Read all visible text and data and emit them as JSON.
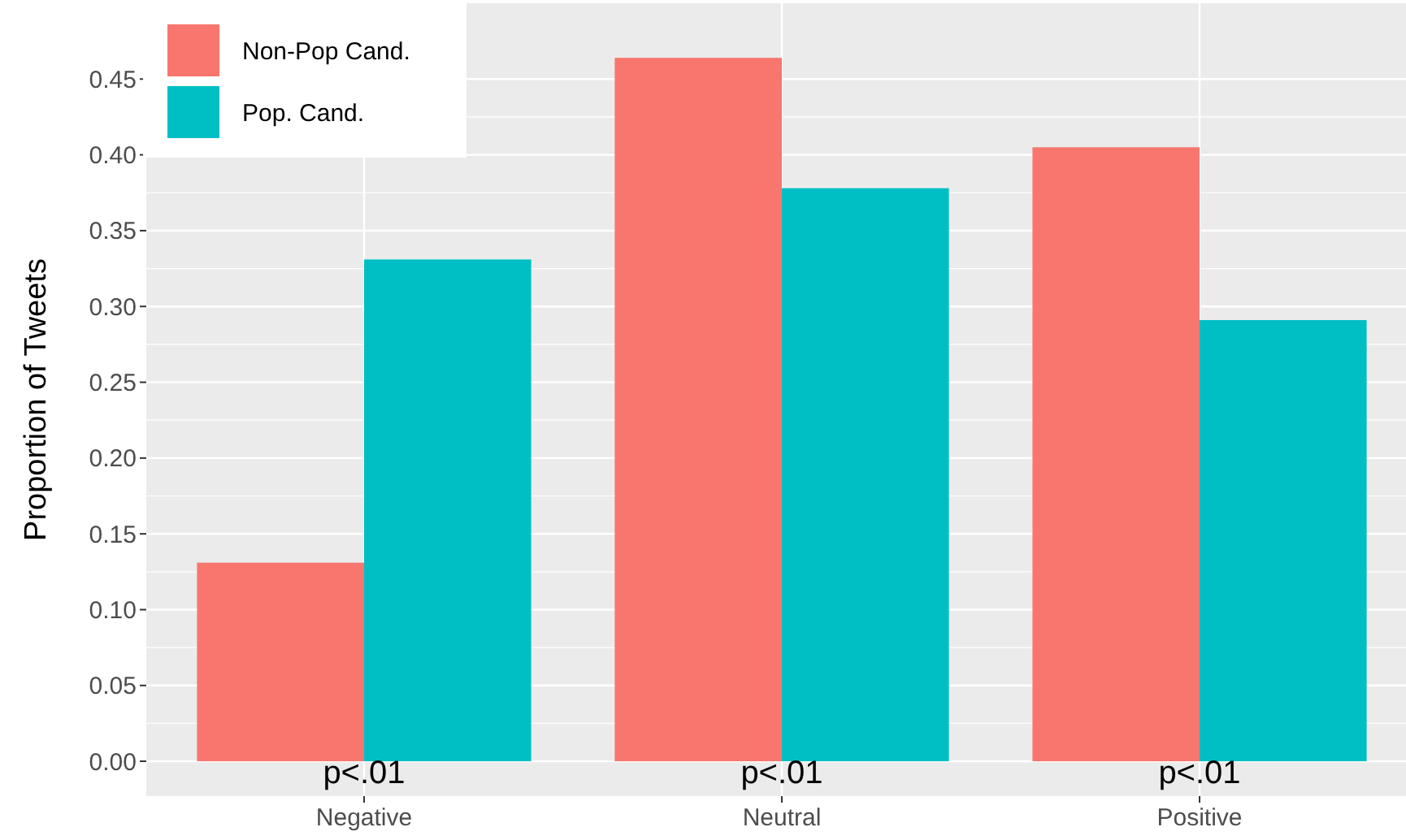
{
  "chart_data": {
    "type": "bar",
    "ylabel": "Proportion of Tweets",
    "categories": [
      "Negative",
      "Neutral",
      "Positive"
    ],
    "series": [
      {
        "name": "Non-Pop Cand.",
        "color": "#f8766d",
        "values": [
          0.131,
          0.464,
          0.405
        ]
      },
      {
        "name": "Pop. Cand.",
        "color": "#00bfc4",
        "values": [
          0.331,
          0.378,
          0.291
        ]
      }
    ],
    "ylim": [
      -0.023,
      0.5
    ],
    "yticks": [
      {
        "value": 0,
        "label": "0.00"
      },
      {
        "value": 0.05,
        "label": "0.05"
      },
      {
        "value": 0.1,
        "label": "0.10"
      },
      {
        "value": 0.15,
        "label": "0.15"
      },
      {
        "value": 0.2,
        "label": "0.20"
      },
      {
        "value": 0.25,
        "label": "0.25"
      },
      {
        "value": 0.3,
        "label": "0.30"
      },
      {
        "value": 0.35,
        "label": "0.35"
      },
      {
        "value": 0.4,
        "label": "0.40"
      },
      {
        "value": 0.45,
        "label": "0.45"
      }
    ],
    "grid": true,
    "legend": "top left",
    "annotations": [
      "p<.01",
      "p<.01",
      "p<.01"
    ]
  }
}
